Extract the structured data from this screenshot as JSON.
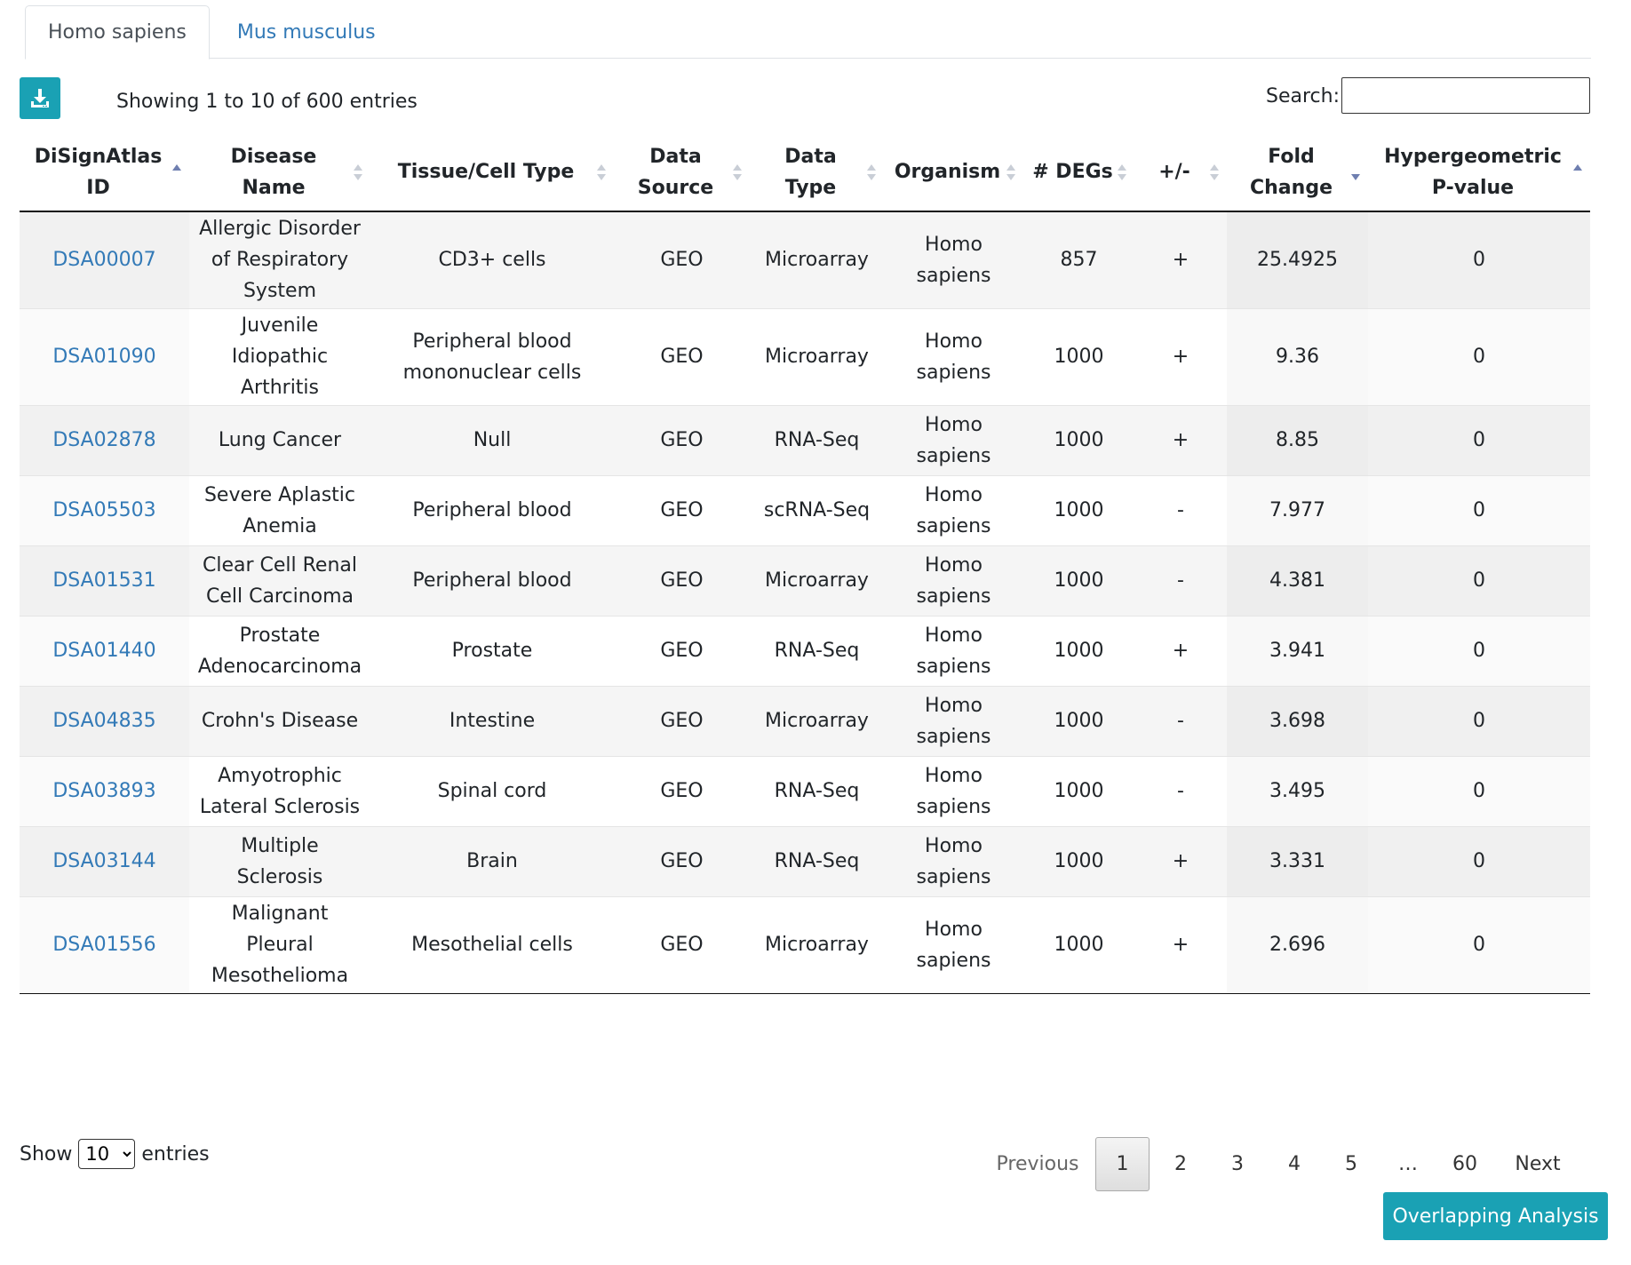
{
  "tabs": [
    {
      "label": "Homo sapiens",
      "active": true
    },
    {
      "label": "Mus musculus",
      "active": false
    }
  ],
  "toolbar": {
    "download_icon": "download-icon",
    "info": "Showing 1 to 10 of 600 entries",
    "search_label": "Search:",
    "search_value": ""
  },
  "table": {
    "columns": [
      {
        "label": "DiSignAtlas ID",
        "sort": "asc"
      },
      {
        "label": "Disease Name",
        "sort": "none"
      },
      {
        "label": "Tissue/Cell Type",
        "sort": "none"
      },
      {
        "label": "Data Source",
        "sort": "none"
      },
      {
        "label": "Data Type",
        "sort": "none"
      },
      {
        "label": "Organism",
        "sort": "none"
      },
      {
        "label": "# DEGs",
        "sort": "none"
      },
      {
        "label": "+/-",
        "sort": "none"
      },
      {
        "label": "Fold Change",
        "sort": "desc"
      },
      {
        "label": "Hypergeometric P-value",
        "sort": "asc"
      }
    ],
    "rows": [
      [
        "DSA00007",
        "Allergic Disorder of Respiratory System",
        "CD3+ cells",
        "GEO",
        "Microarray",
        "Homo sapiens",
        "857",
        "+",
        "25.4925",
        "0"
      ],
      [
        "DSA01090",
        "Juvenile Idiopathic Arthritis",
        "Peripheral blood mononuclear cells",
        "GEO",
        "Microarray",
        "Homo sapiens",
        "1000",
        "+",
        "9.36",
        "0"
      ],
      [
        "DSA02878",
        "Lung Cancer",
        "Null",
        "GEO",
        "RNA-Seq",
        "Homo sapiens",
        "1000",
        "+",
        "8.85",
        "0"
      ],
      [
        "DSA05503",
        "Severe Aplastic Anemia",
        "Peripheral blood",
        "GEO",
        "scRNA-Seq",
        "Homo sapiens",
        "1000",
        "-",
        "7.977",
        "0"
      ],
      [
        "DSA01531",
        "Clear Cell Renal Cell Carcinoma",
        "Peripheral blood",
        "GEO",
        "Microarray",
        "Homo sapiens",
        "1000",
        "-",
        "4.381",
        "0"
      ],
      [
        "DSA01440",
        "Prostate Adenocarcinoma",
        "Prostate",
        "GEO",
        "RNA-Seq",
        "Homo sapiens",
        "1000",
        "+",
        "3.941",
        "0"
      ],
      [
        "DSA04835",
        "Crohn's Disease",
        "Intestine",
        "GEO",
        "Microarray",
        "Homo sapiens",
        "1000",
        "-",
        "3.698",
        "0"
      ],
      [
        "DSA03893",
        "Amyotrophic Lateral Sclerosis",
        "Spinal cord",
        "GEO",
        "RNA-Seq",
        "Homo sapiens",
        "1000",
        "-",
        "3.495",
        "0"
      ],
      [
        "DSA03144",
        "Multiple Sclerosis",
        "Brain",
        "GEO",
        "RNA-Seq",
        "Homo sapiens",
        "1000",
        "+",
        "3.331",
        "0"
      ],
      [
        "DSA01556",
        "Malignant Pleural Mesothelioma",
        "Mesothelial cells",
        "GEO",
        "Microarray",
        "Homo sapiens",
        "1000",
        "+",
        "2.696",
        "0"
      ]
    ]
  },
  "footer": {
    "show_label": "Show",
    "entries_label": "entries",
    "page_length": "10",
    "pagination": {
      "previous": "Previous",
      "pages": [
        "1",
        "2",
        "3",
        "4",
        "5",
        "…",
        "60"
      ],
      "current": "1",
      "next": "Next"
    },
    "overlap_button": "Overlapping Analysis"
  },
  "colors": {
    "accent": "#1aa1b4",
    "link": "#337ab7"
  }
}
